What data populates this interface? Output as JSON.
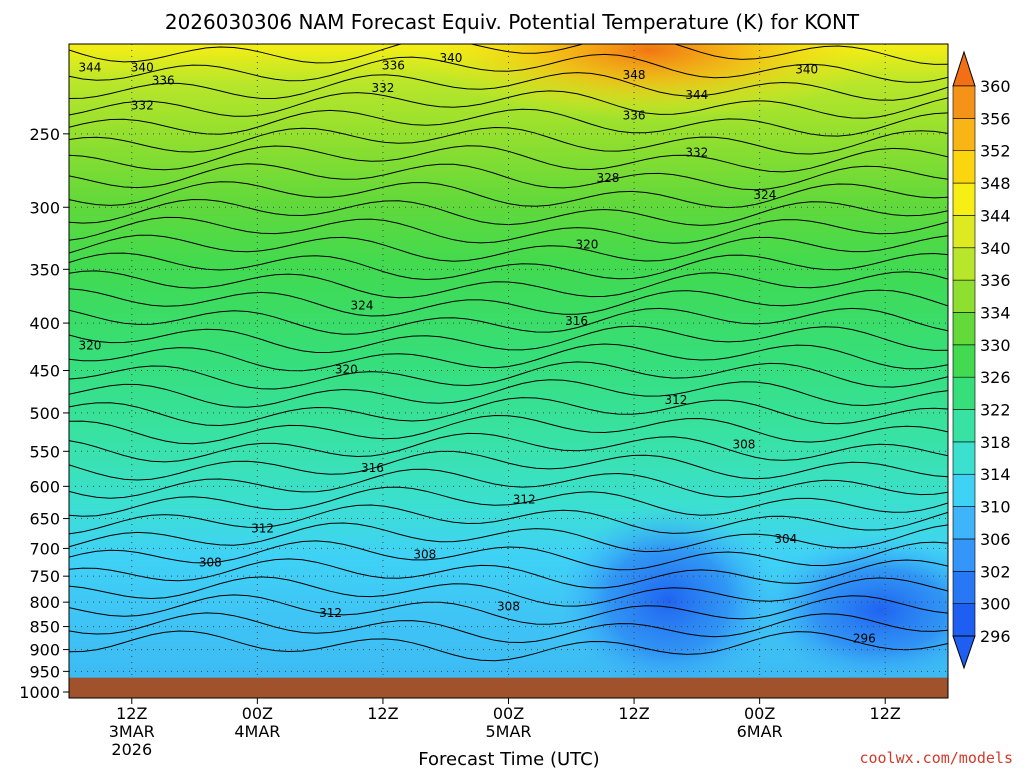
{
  "chart_data": {
    "type": "heatmap",
    "title": "2026030306 NAM Forecast Equiv. Potential Temperature (K) for KONT",
    "xlabel": "Forecast Time (UTC)",
    "ylabel": "",
    "y_axis": {
      "scale": "log",
      "reversed": true,
      "ticks": [
        250,
        300,
        350,
        400,
        450,
        500,
        550,
        600,
        650,
        700,
        750,
        800,
        850,
        900,
        950,
        1000
      ],
      "ylim": [
        200,
        1015
      ]
    },
    "x_axis": {
      "xlim_hours": [
        0,
        84
      ],
      "ticks": [
        {
          "hour": 6,
          "l1": "12Z",
          "l2": "3MAR",
          "l3": "2026"
        },
        {
          "hour": 18,
          "l1": "00Z",
          "l2": "4MAR",
          "l3": ""
        },
        {
          "hour": 30,
          "l1": "12Z",
          "l2": "",
          "l3": ""
        },
        {
          "hour": 42,
          "l1": "00Z",
          "l2": "5MAR",
          "l3": ""
        },
        {
          "hour": 54,
          "l1": "12Z",
          "l2": "",
          "l3": ""
        },
        {
          "hour": 66,
          "l1": "00Z",
          "l2": "6MAR",
          "l3": ""
        },
        {
          "hour": 78,
          "l1": "12Z",
          "l2": "",
          "l3": ""
        }
      ]
    },
    "colorbar": {
      "levels": [
        296,
        300,
        302,
        306,
        310,
        314,
        318,
        322,
        326,
        330,
        334,
        336,
        340,
        344,
        348,
        352,
        356,
        360
      ],
      "colors": [
        "#1e5ef0",
        "#2878f5",
        "#3396f8",
        "#3fb4fb",
        "#3fd2f5",
        "#3be0cf",
        "#38e2a3",
        "#36df79",
        "#41da50",
        "#63d93a",
        "#8edf2f",
        "#b8e62a",
        "#ddea22",
        "#f7ee14",
        "#fbd60f",
        "#f8b515",
        "#f59318",
        "#f26f14"
      ]
    },
    "contour_labels": [
      {
        "value": 340,
        "hour": 36.5,
        "p": 207
      },
      {
        "value": 344,
        "hour": 2.0,
        "p": 212
      },
      {
        "value": 340,
        "hour": 7.0,
        "p": 212
      },
      {
        "value": 336,
        "hour": 9.0,
        "p": 219
      },
      {
        "value": 332,
        "hour": 7.0,
        "p": 233
      },
      {
        "value": 336,
        "hour": 31.0,
        "p": 211
      },
      {
        "value": 332,
        "hour": 30.0,
        "p": 223
      },
      {
        "value": 348,
        "hour": 54.0,
        "p": 216
      },
      {
        "value": 344,
        "hour": 60.0,
        "p": 227
      },
      {
        "value": 340,
        "hour": 70.5,
        "p": 213
      },
      {
        "value": 336,
        "hour": 54.0,
        "p": 239
      },
      {
        "value": 332,
        "hour": 60.0,
        "p": 262
      },
      {
        "value": 328,
        "hour": 51.5,
        "p": 279
      },
      {
        "value": 324,
        "hour": 66.5,
        "p": 291
      },
      {
        "value": 320,
        "hour": 49.5,
        "p": 329
      },
      {
        "value": 324,
        "hour": 28.0,
        "p": 383
      },
      {
        "value": 316,
        "hour": 48.5,
        "p": 398
      },
      {
        "value": 320,
        "hour": 2.0,
        "p": 423
      },
      {
        "value": 320,
        "hour": 26.5,
        "p": 449
      },
      {
        "value": 312,
        "hour": 58.0,
        "p": 484
      },
      {
        "value": 308,
        "hour": 64.5,
        "p": 541
      },
      {
        "value": 316,
        "hour": 29.0,
        "p": 573
      },
      {
        "value": 312,
        "hour": 43.5,
        "p": 620
      },
      {
        "value": 312,
        "hour": 18.5,
        "p": 666
      },
      {
        "value": 304,
        "hour": 68.5,
        "p": 684
      },
      {
        "value": 308,
        "hour": 34.0,
        "p": 711
      },
      {
        "value": 308,
        "hour": 13.5,
        "p": 725
      },
      {
        "value": 308,
        "hour": 42.0,
        "p": 809
      },
      {
        "value": 312,
        "hour": 25.0,
        "p": 822
      },
      {
        "value": 296,
        "hour": 76.0,
        "p": 876
      }
    ],
    "surface_pressure_hpa": 965
  },
  "credit": "coolwx.com/models"
}
